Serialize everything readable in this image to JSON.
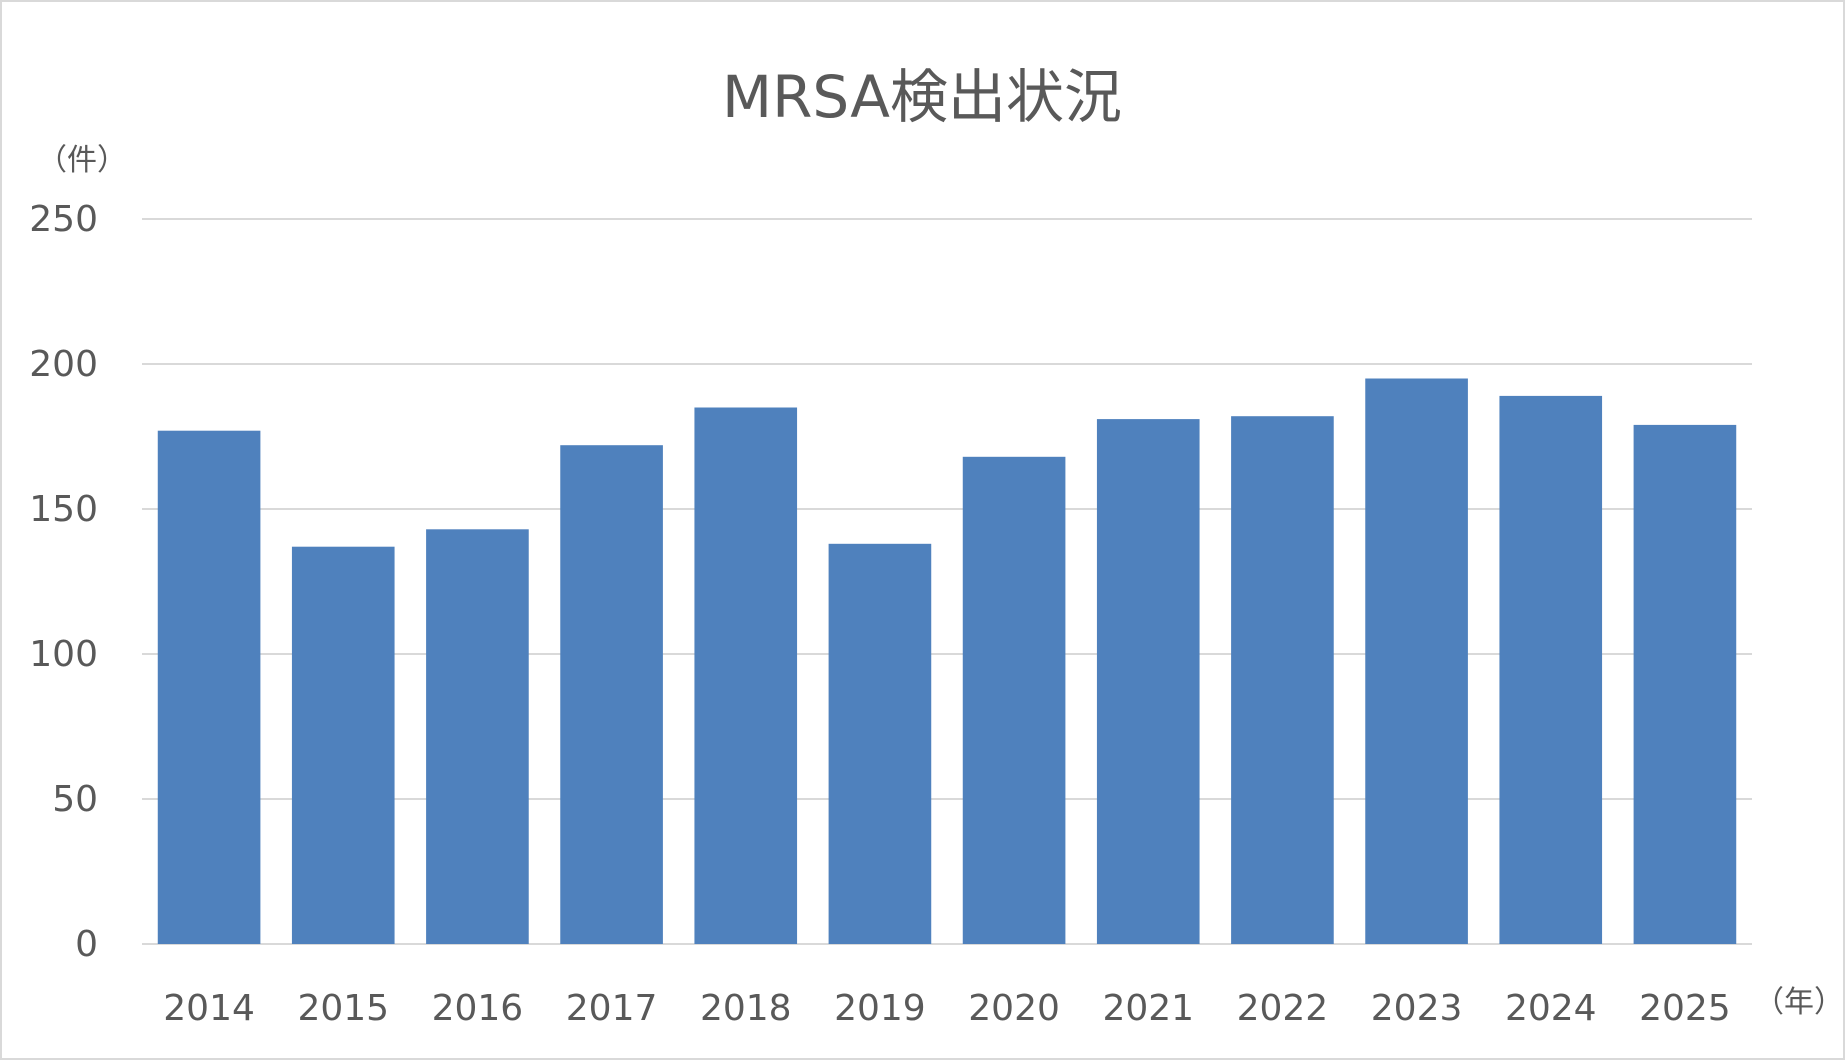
{
  "chart_data": {
    "type": "bar",
    "title": "MRSA検出状況",
    "ylabel": "（件）",
    "xlabel": "（年）",
    "categories": [
      "2014",
      "2015",
      "2016",
      "2017",
      "2018",
      "2019",
      "2020",
      "2021",
      "2022",
      "2023",
      "2024",
      "2025"
    ],
    "values": [
      177,
      137,
      143,
      172,
      185,
      138,
      168,
      181,
      182,
      195,
      189,
      179
    ],
    "ylim": [
      0,
      250
    ],
    "yticks": [
      0,
      50,
      100,
      150,
      200,
      250
    ],
    "grid": true,
    "legend": "none",
    "colors": {
      "bar": "#4f81bd",
      "grid": "#d9d9d9",
      "text": "#595959"
    }
  }
}
